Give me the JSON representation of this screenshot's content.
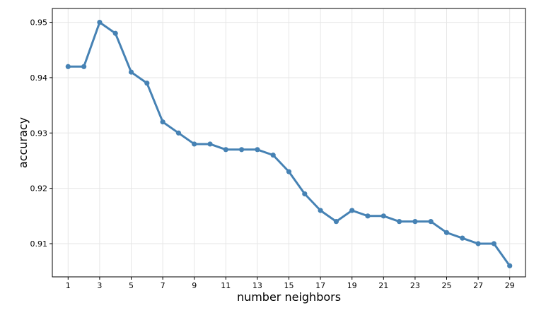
{
  "chart_data": {
    "type": "line",
    "xlabel": "number neighbors",
    "ylabel": "accuracy",
    "grid": true,
    "color": "#4682b4",
    "xlim": [
      0,
      30
    ],
    "ylim": [
      0.904,
      0.9525
    ],
    "xticks": [
      1,
      3,
      5,
      7,
      9,
      11,
      13,
      15,
      17,
      19,
      21,
      23,
      25,
      27,
      29
    ],
    "yticks": [
      0.91,
      0.92,
      0.93,
      0.94,
      0.95
    ],
    "ytick_labels": [
      "0.91",
      "0.92",
      "0.93",
      "0.94",
      "0.95"
    ],
    "series": [
      {
        "x": [
          1,
          2,
          3,
          4,
          5,
          6,
          7,
          8,
          9,
          10,
          11,
          12,
          13,
          14,
          15,
          16,
          17,
          18,
          19,
          20,
          21,
          22,
          23,
          24,
          25,
          26,
          27,
          28,
          29
        ],
        "values": [
          0.942,
          0.942,
          0.95,
          0.948,
          0.941,
          0.939,
          0.932,
          0.93,
          0.928,
          0.928,
          0.927,
          0.927,
          0.927,
          0.926,
          0.923,
          0.919,
          0.916,
          0.914,
          0.916,
          0.915,
          0.915,
          0.914,
          0.914,
          0.914,
          0.912,
          0.911,
          0.91,
          0.91,
          0.906
        ]
      }
    ]
  }
}
